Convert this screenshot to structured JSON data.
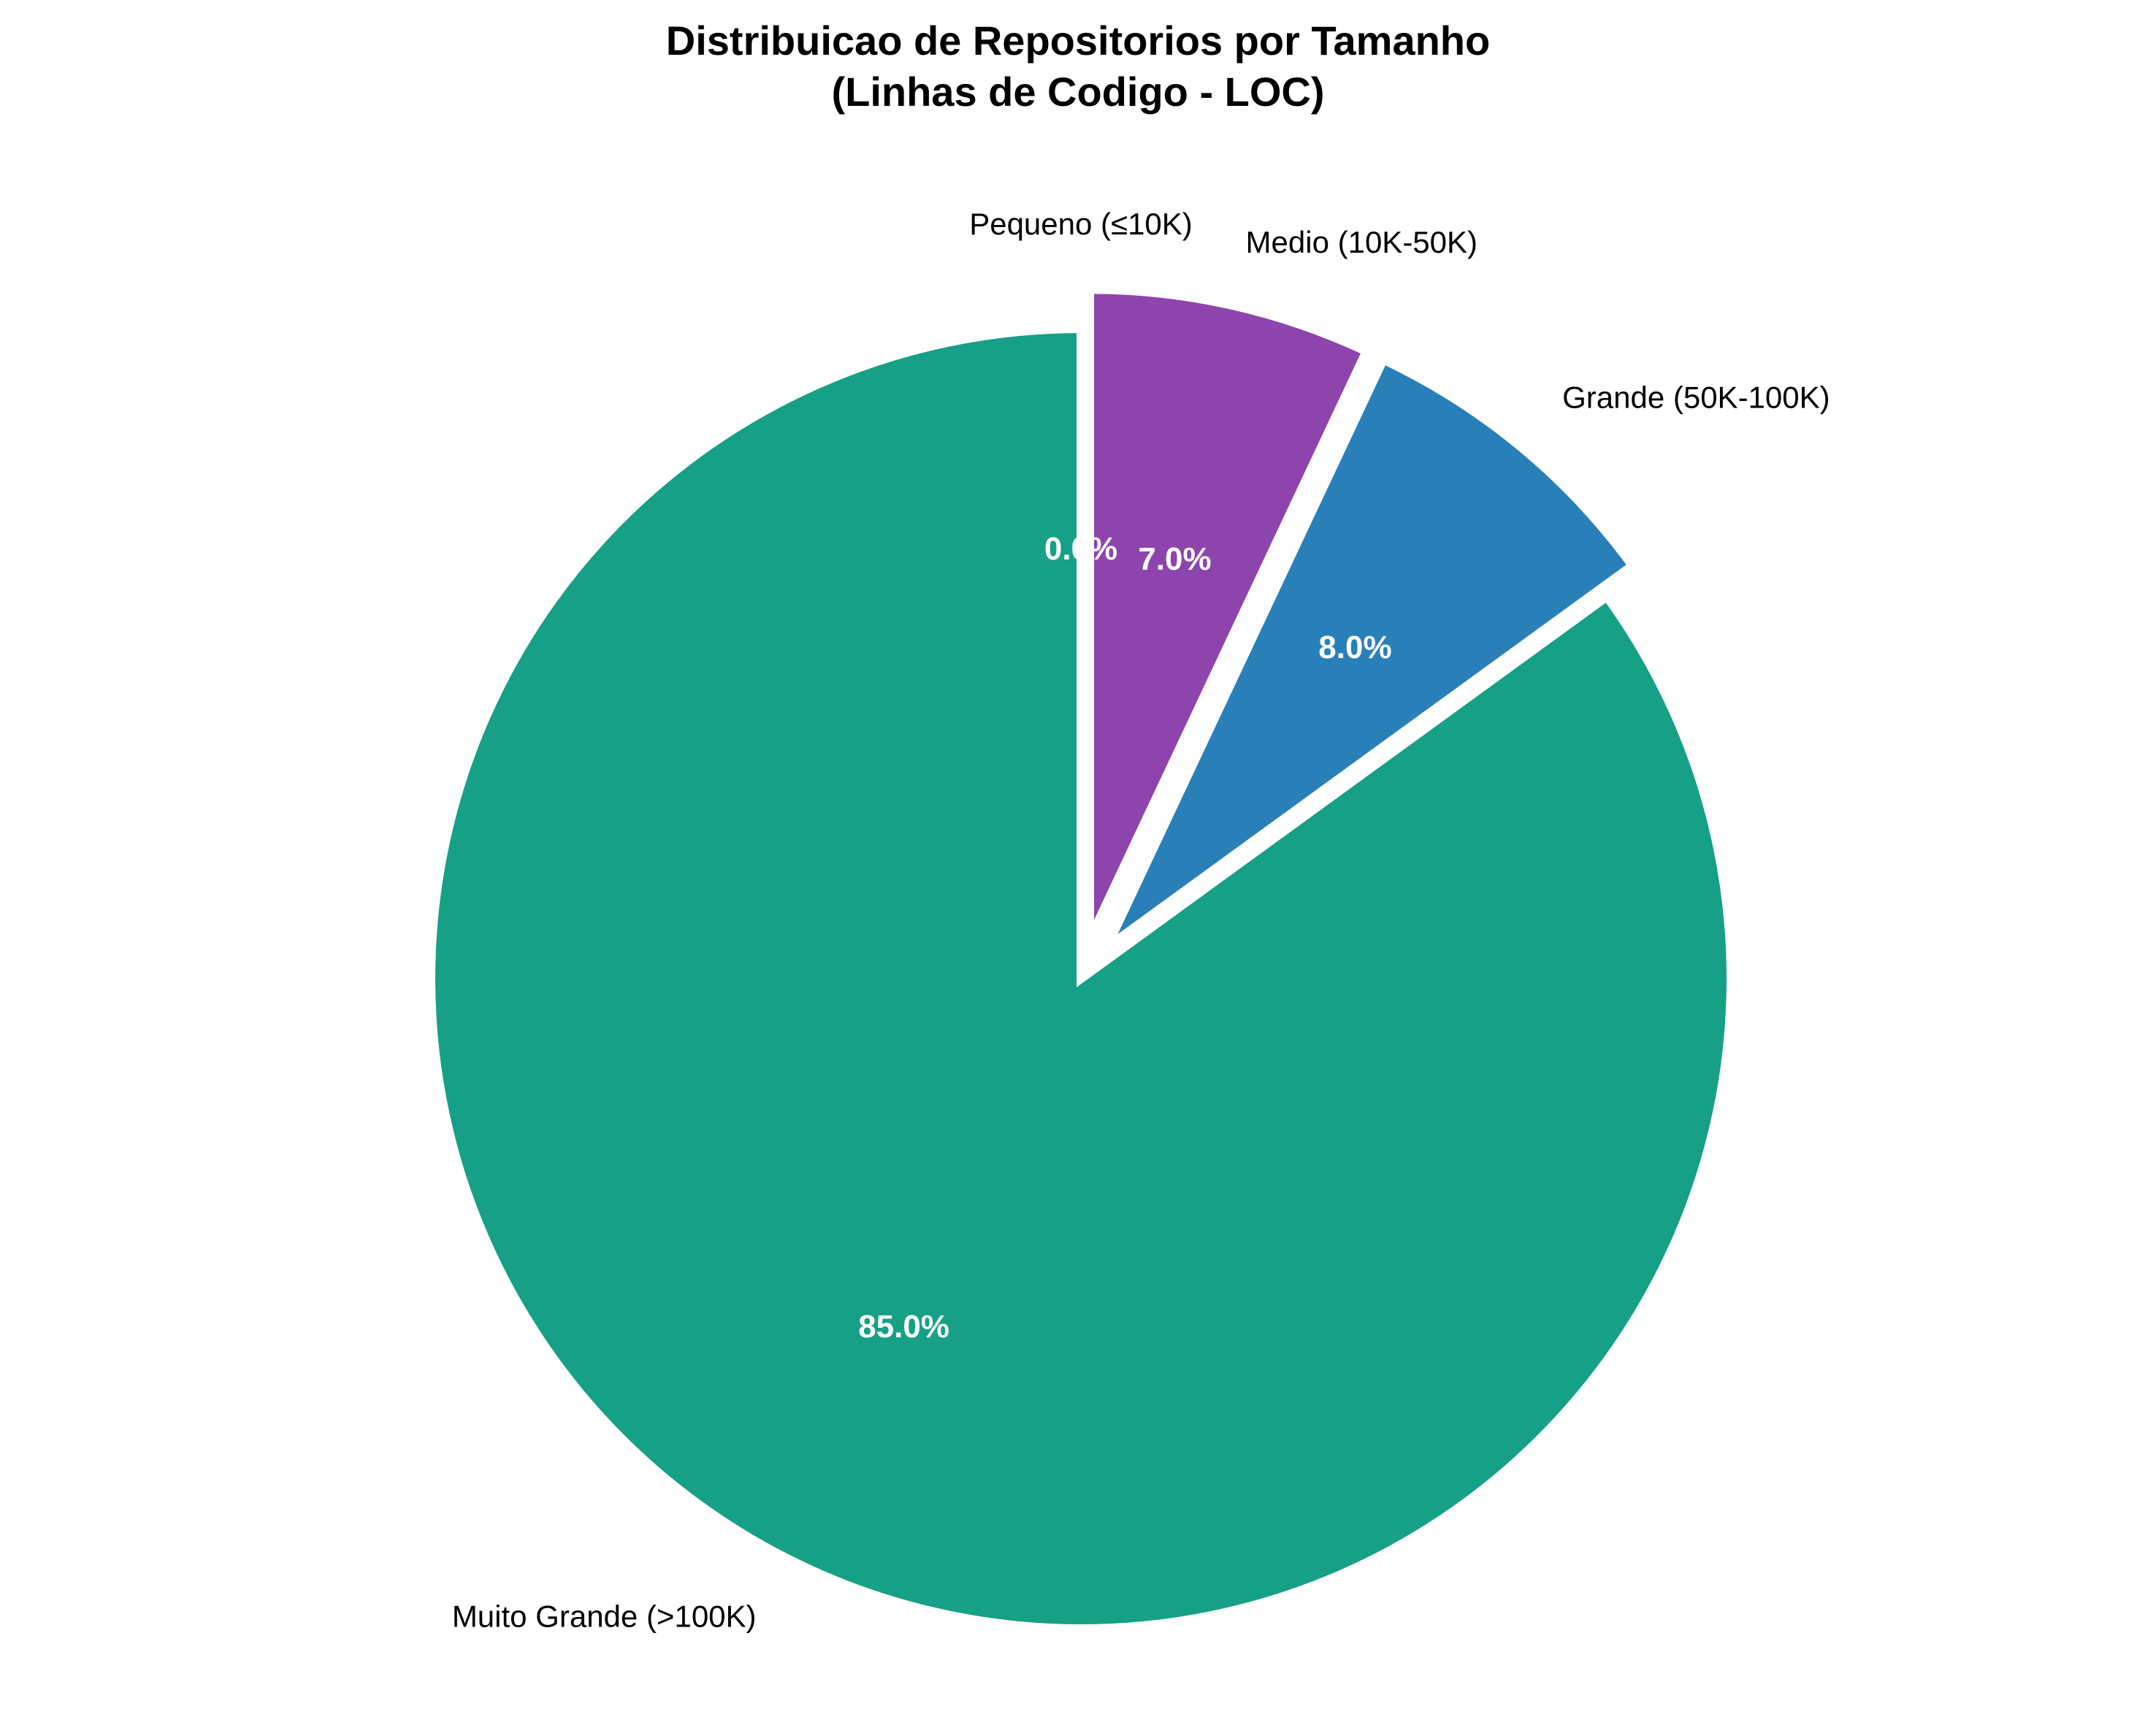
{
  "chart_data": {
    "type": "pie",
    "title_lines": [
      "Distribuicao de Repositorios por Tamanho",
      "(Linhas de Codigo - LOC)"
    ],
    "start_angle_deg": 90,
    "direction": "clockwise",
    "slices": [
      {
        "label": "Pequeno (≤10K)",
        "value": 0.0,
        "pct_label": "0.0%",
        "color": "#e67e22",
        "exploded": true
      },
      {
        "label": "Medio (10K-50K)",
        "value": 7.0,
        "pct_label": "7.0%",
        "color": "#8e44ad",
        "exploded": true
      },
      {
        "label": "Grande (50K-100K)",
        "value": 8.0,
        "pct_label": "8.0%",
        "color": "#2980b9",
        "exploded": true
      },
      {
        "label": "Muito Grande (>100K)",
        "value": 85.0,
        "pct_label": "85.0%",
        "color": "#16a085",
        "exploded": false
      }
    ],
    "edge_color": "#ffffff",
    "legend": "none"
  }
}
